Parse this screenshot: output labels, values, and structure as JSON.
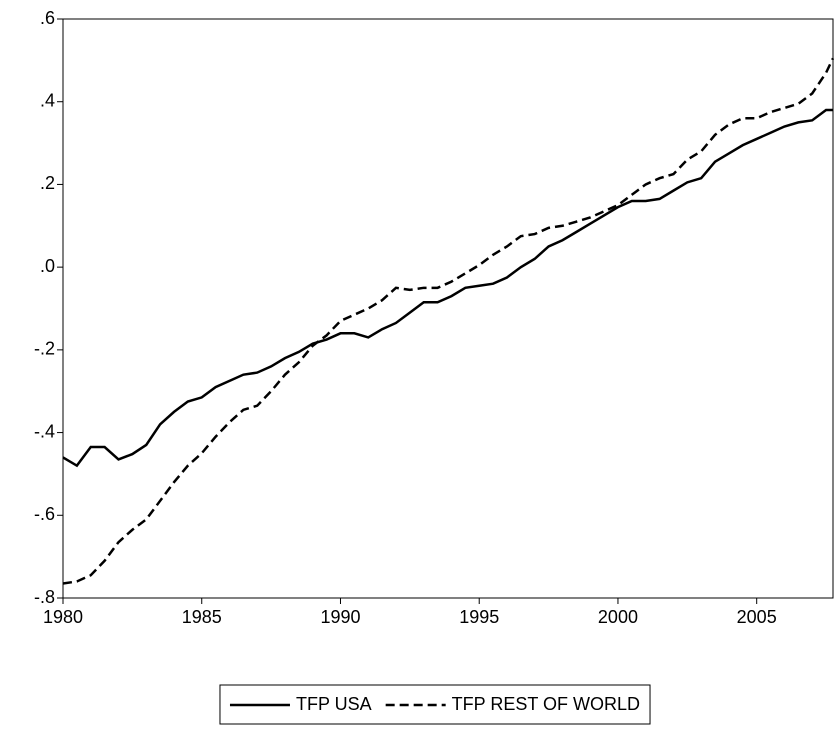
{
  "chart_data": {
    "type": "line",
    "x": [
      1980,
      1980.5,
      1981,
      1981.5,
      1982,
      1982.5,
      1983,
      1983.5,
      1984,
      1984.5,
      1985,
      1985.5,
      1986,
      1986.5,
      1987,
      1987.5,
      1988,
      1988.5,
      1989,
      1989.5,
      1990,
      1990.5,
      1991,
      1991.5,
      1992,
      1992.5,
      1993,
      1993.5,
      1994,
      1994.5,
      1995,
      1995.5,
      1996,
      1996.5,
      1997,
      1997.5,
      1998,
      1998.5,
      1999,
      1999.5,
      2000,
      2000.5,
      2001,
      2001.5,
      2002,
      2002.5,
      2003,
      2003.5,
      2004,
      2004.5,
      2005,
      2005.5,
      2006,
      2006.5,
      2007,
      2007.5,
      2007.75
    ],
    "series": [
      {
        "name": "TFP USA",
        "color": "#000000",
        "dash": "solid",
        "values": [
          -0.46,
          -0.48,
          -0.435,
          -0.435,
          -0.465,
          -0.452,
          -0.43,
          -0.38,
          -0.35,
          -0.325,
          -0.315,
          -0.29,
          -0.275,
          -0.26,
          -0.255,
          -0.24,
          -0.22,
          -0.205,
          -0.185,
          -0.175,
          -0.16,
          -0.16,
          -0.17,
          -0.15,
          -0.135,
          -0.11,
          -0.085,
          -0.085,
          -0.07,
          -0.05,
          -0.045,
          -0.04,
          -0.025,
          0.0,
          0.02,
          0.05,
          0.065,
          0.085,
          0.105,
          0.125,
          0.145,
          0.16,
          0.16,
          0.165,
          0.185,
          0.205,
          0.215,
          0.255,
          0.275,
          0.295,
          0.31,
          0.325,
          0.34,
          0.35,
          0.355,
          0.38,
          0.38
        ]
      },
      {
        "name": "TFP REST OF WORLD",
        "color": "#000000",
        "dash": "dashed",
        "values": [
          -0.765,
          -0.76,
          -0.745,
          -0.71,
          -0.665,
          -0.635,
          -0.61,
          -0.565,
          -0.52,
          -0.48,
          -0.45,
          -0.41,
          -0.375,
          -0.345,
          -0.335,
          -0.3,
          -0.26,
          -0.23,
          -0.19,
          -0.165,
          -0.13,
          -0.115,
          -0.1,
          -0.08,
          -0.05,
          -0.055,
          -0.05,
          -0.05,
          -0.035,
          -0.015,
          0.005,
          0.03,
          0.05,
          0.075,
          0.08,
          0.095,
          0.1,
          0.11,
          0.12,
          0.135,
          0.15,
          0.175,
          0.2,
          0.215,
          0.225,
          0.26,
          0.28,
          0.32,
          0.345,
          0.36,
          0.36,
          0.375,
          0.385,
          0.395,
          0.42,
          0.47,
          0.505
        ]
      }
    ],
    "xlim": [
      1980,
      2007.75
    ],
    "xticks": [
      1980,
      1985,
      1990,
      1995,
      2000,
      2005
    ],
    "ylim": [
      -0.8,
      0.6
    ],
    "yticks": [
      {
        "value": -0.8,
        "label": "-.8"
      },
      {
        "value": -0.6,
        "label": "-.6"
      },
      {
        "value": -0.4,
        "label": "-.4"
      },
      {
        "value": -0.2,
        "label": "-.2"
      },
      {
        "value": 0,
        "label": ".0"
      },
      {
        "value": 0.2,
        "label": ".2"
      },
      {
        "value": 0.4,
        "label": ".4"
      },
      {
        "value": 0.6,
        "label": ".6"
      }
    ],
    "grid": false,
    "legend": "bottom"
  }
}
